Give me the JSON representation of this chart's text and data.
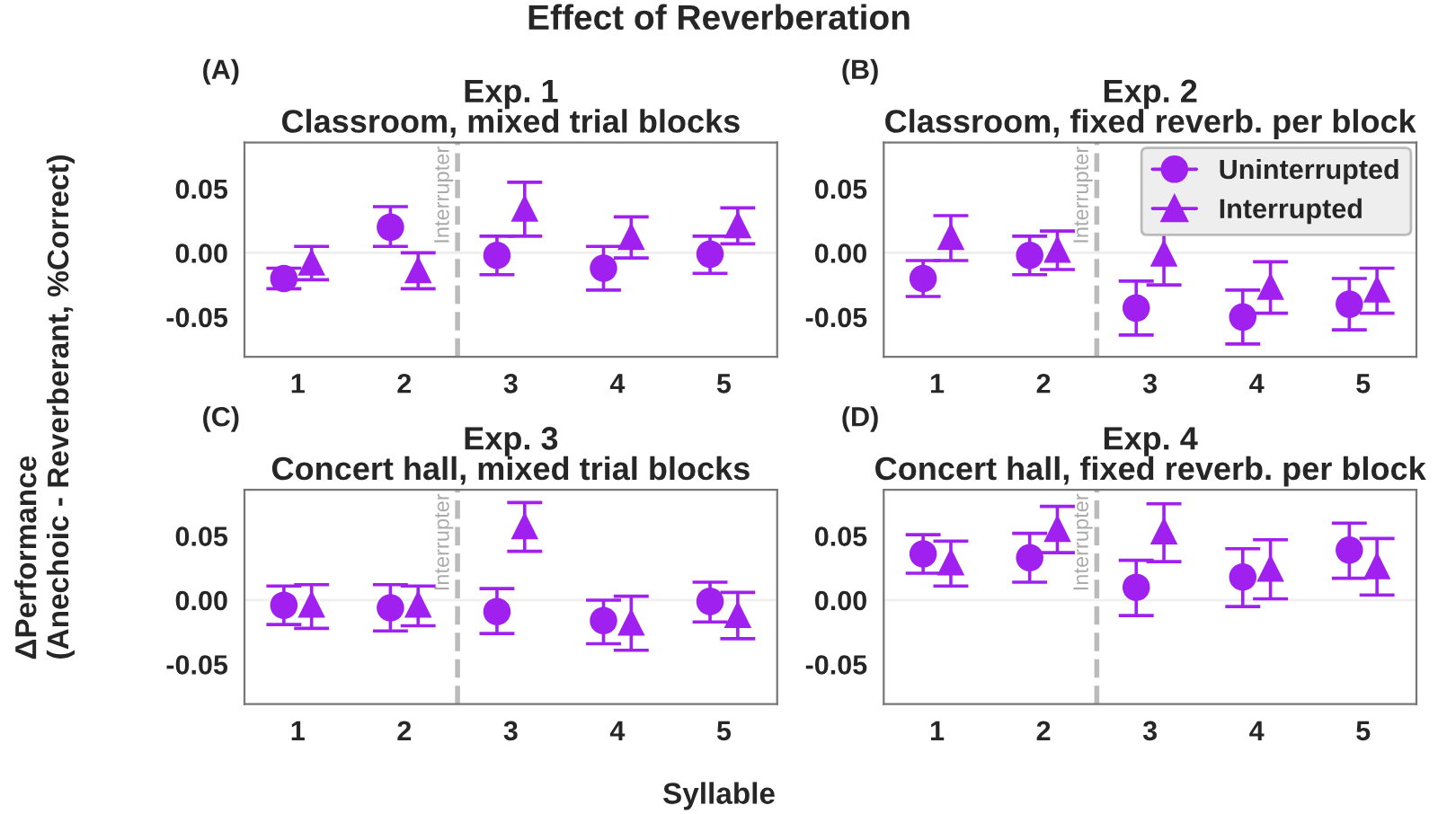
{
  "chart_data": [
    {
      "type": "scatter",
      "title": "Exp. 1",
      "subtitle": "Classroom, mixed trial blocks",
      "ylabel": "ΔPerformance\n(Anechoic - Reverberant, %Correct)",
      "annotations": [
        "Effect of Reverberation",
        "(A)"
      ],
      "xlim": [
        0.5,
        5.5
      ],
      "xticks": [
        1,
        2,
        3,
        4,
        5
      ],
      "ylim": [
        -0.081,
        0.086
      ],
      "yticks": [
        {
          "value": -0.05,
          "label": "-0.05"
        },
        {
          "value": 0,
          "label": "0.00"
        },
        {
          "value": 0.05,
          "label": "0.05"
        }
      ],
      "grid": false,
      "legend": false,
      "ref_lines": [
        {
          "axis": "y",
          "value": 0,
          "color": "#efefef",
          "line_style": "solid"
        },
        {
          "axis": "x",
          "value": 2.5,
          "label": "Interrupter",
          "color": "#bbbbbb",
          "line_style": "dashed"
        }
      ],
      "series": [
        {
          "color": "#a020f0",
          "marker": "circle",
          "x": [
            0.87,
            1.87,
            2.87,
            3.87,
            4.87
          ],
          "values": [
            -0.02,
            0.02,
            -0.002,
            -0.012,
            -0.001
          ],
          "errors": [
            [
              -0.028,
              -0.012
            ],
            [
              0.005,
              0.036
            ],
            [
              -0.017,
              0.013
            ],
            [
              -0.029,
              0.005
            ],
            [
              -0.016,
              0.013
            ]
          ]
        },
        {
          "color": "#a020f0",
          "marker": "triangle",
          "x": [
            1.13,
            2.13,
            3.13,
            4.13,
            5.13
          ],
          "values": [
            -0.007,
            -0.013,
            0.035,
            0.013,
            0.022
          ],
          "errors": [
            [
              -0.021,
              0.005
            ],
            [
              -0.028,
              0.0
            ],
            [
              0.013,
              0.055
            ],
            [
              -0.004,
              0.028
            ],
            [
              0.007,
              0.035
            ]
          ]
        }
      ]
    },
    {
      "type": "scatter",
      "title": "Exp. 2",
      "subtitle": "Classroom, fixed reverb. per block",
      "annotations": [
        "(B)"
      ],
      "xlim": [
        0.5,
        5.5
      ],
      "xticks": [
        1,
        2,
        3,
        4,
        5
      ],
      "ylim": [
        -0.081,
        0.086
      ],
      "yticks": [
        {
          "value": -0.05,
          "label": "-0.05"
        },
        {
          "value": 0,
          "label": "0.00"
        },
        {
          "value": 0.05,
          "label": "0.05"
        }
      ],
      "grid": false,
      "legend": "top right",
      "ref_lines": [
        {
          "axis": "y",
          "value": 0,
          "color": "#efefef",
          "line_style": "solid"
        },
        {
          "axis": "x",
          "value": 2.5,
          "label": "Interrupter",
          "color": "#bbbbbb",
          "line_style": "dashed"
        }
      ],
      "series": [
        {
          "name": "Uninterrupted",
          "color": "#a020f0",
          "marker": "circle",
          "x": [
            0.87,
            1.87,
            2.87,
            3.87,
            4.87
          ],
          "values": [
            -0.02,
            -0.002,
            -0.043,
            -0.05,
            -0.04
          ],
          "errors": [
            [
              -0.034,
              -0.006
            ],
            [
              -0.017,
              0.013
            ],
            [
              -0.064,
              -0.022
            ],
            [
              -0.071,
              -0.029
            ],
            [
              -0.06,
              -0.02
            ]
          ]
        },
        {
          "name": "Interrupted",
          "color": "#a020f0",
          "marker": "triangle",
          "x": [
            1.13,
            2.13,
            3.13,
            4.13,
            5.13
          ],
          "values": [
            0.013,
            0.003,
            0.0,
            -0.026,
            -0.028
          ],
          "errors": [
            [
              -0.006,
              0.029
            ],
            [
              -0.013,
              0.017
            ],
            [
              -0.025,
              0.02
            ],
            [
              -0.047,
              -0.007
            ],
            [
              -0.047,
              -0.012
            ]
          ]
        }
      ]
    },
    {
      "type": "scatter",
      "title": "Exp. 3",
      "subtitle": "Concert hall, mixed trial blocks",
      "xlabel": "Syllable",
      "annotations": [
        "(C)"
      ],
      "xlim": [
        0.5,
        5.5
      ],
      "xticks": [
        1,
        2,
        3,
        4,
        5
      ],
      "ylim": [
        -0.081,
        0.086
      ],
      "yticks": [
        {
          "value": -0.05,
          "label": "-0.05"
        },
        {
          "value": 0,
          "label": "0.00"
        },
        {
          "value": 0.05,
          "label": "0.05"
        }
      ],
      "grid": false,
      "legend": false,
      "ref_lines": [
        {
          "axis": "y",
          "value": 0,
          "color": "#efefef",
          "line_style": "solid"
        },
        {
          "axis": "x",
          "value": 2.5,
          "label": "Interrupter",
          "color": "#bbbbbb",
          "line_style": "dashed"
        }
      ],
      "series": [
        {
          "color": "#a020f0",
          "marker": "circle",
          "x": [
            0.87,
            1.87,
            2.87,
            3.87,
            4.87
          ],
          "values": [
            -0.004,
            -0.006,
            -0.009,
            -0.016,
            -0.001
          ],
          "errors": [
            [
              -0.019,
              0.011
            ],
            [
              -0.024,
              0.012
            ],
            [
              -0.026,
              0.009
            ],
            [
              -0.034,
              0.0
            ],
            [
              -0.017,
              0.014
            ]
          ]
        },
        {
          "color": "#a020f0",
          "marker": "triangle",
          "x": [
            1.13,
            2.13,
            3.13,
            4.13,
            5.13
          ],
          "values": [
            -0.003,
            -0.003,
            0.058,
            -0.017,
            -0.011
          ],
          "errors": [
            [
              -0.022,
              0.012
            ],
            [
              -0.02,
              0.011
            ],
            [
              0.038,
              0.076
            ],
            [
              -0.039,
              0.003
            ],
            [
              -0.03,
              0.006
            ]
          ]
        }
      ]
    },
    {
      "type": "scatter",
      "title": "Exp. 4",
      "subtitle": "Concert hall, fixed reverb. per block",
      "annotations": [
        "(D)"
      ],
      "xlim": [
        0.5,
        5.5
      ],
      "xticks": [
        1,
        2,
        3,
        4,
        5
      ],
      "ylim": [
        -0.081,
        0.086
      ],
      "yticks": [
        {
          "value": -0.05,
          "label": "-0.05"
        },
        {
          "value": 0,
          "label": "0.00"
        },
        {
          "value": 0.05,
          "label": "0.05"
        }
      ],
      "grid": false,
      "legend": false,
      "ref_lines": [
        {
          "axis": "y",
          "value": 0,
          "color": "#efefef",
          "line_style": "solid"
        },
        {
          "axis": "x",
          "value": 2.5,
          "label": "Interrupter",
          "color": "#bbbbbb",
          "line_style": "dashed"
        }
      ],
      "series": [
        {
          "color": "#a020f0",
          "marker": "circle",
          "x": [
            0.87,
            1.87,
            2.87,
            3.87,
            4.87
          ],
          "values": [
            0.036,
            0.033,
            0.01,
            0.018,
            0.039
          ],
          "errors": [
            [
              0.021,
              0.051
            ],
            [
              0.014,
              0.052
            ],
            [
              -0.012,
              0.031
            ],
            [
              -0.005,
              0.04
            ],
            [
              0.017,
              0.06
            ]
          ]
        },
        {
          "color": "#a020f0",
          "marker": "triangle",
          "x": [
            1.13,
            2.13,
            3.13,
            4.13,
            5.13
          ],
          "values": [
            0.03,
            0.056,
            0.054,
            0.025,
            0.027
          ],
          "errors": [
            [
              0.011,
              0.046
            ],
            [
              0.037,
              0.073
            ],
            [
              0.03,
              0.075
            ],
            [
              0.001,
              0.047
            ],
            [
              0.004,
              0.048
            ]
          ]
        }
      ]
    }
  ]
}
